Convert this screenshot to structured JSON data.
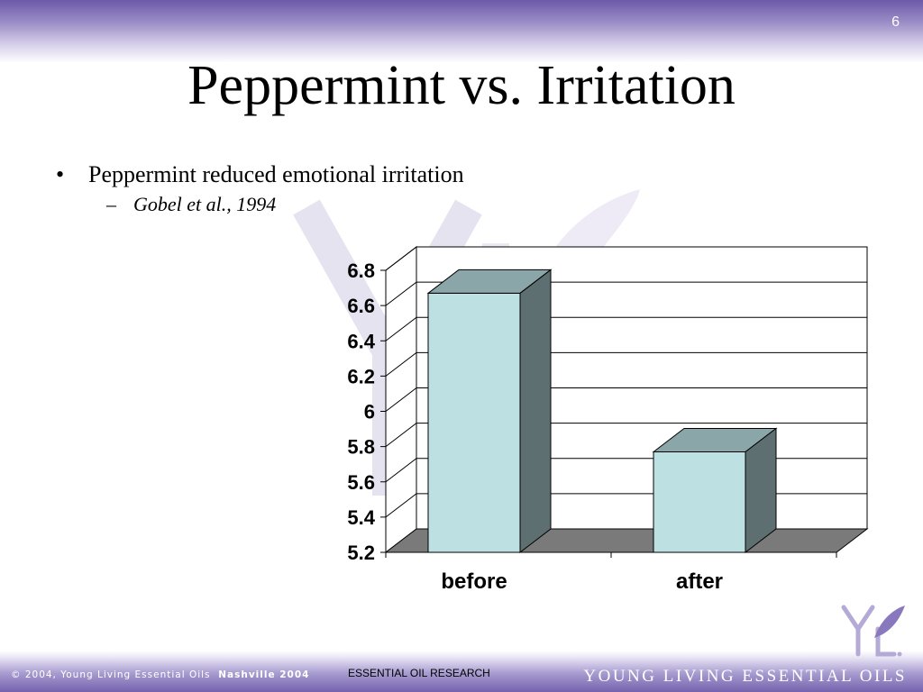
{
  "slide": {
    "number": "6",
    "title": "Peppermint vs. Irritation"
  },
  "bullets": [
    {
      "text": "Peppermint reduced emotional irritation",
      "sub": "Gobel et al., 1994"
    }
  ],
  "footer": {
    "copyright": "© 2004, Young Living Essential Oils",
    "event": "Nashville 2004",
    "center": "ESSENTIAL OIL RESEARCH",
    "brand": "YOUNG LIVING ESSENTIAL OILS",
    "logo_text": "YL"
  },
  "colors": {
    "bar_front": "#bde0e3",
    "bar_top": "#8aa6a8",
    "bar_side": "#5d6f70",
    "floor": "#7a7a7a",
    "accent_purple": "#7462ad"
  },
  "chart_data": {
    "type": "bar",
    "style": "3d",
    "categories": [
      "before",
      "after"
    ],
    "values": [
      6.67,
      5.77
    ],
    "ylim": [
      5.2,
      6.8
    ],
    "yticks": [
      "6.8",
      "6.6",
      "6.4",
      "6.2",
      "6",
      "5.8",
      "5.6",
      "5.4",
      "5.2"
    ],
    "grid": true,
    "legend": false,
    "title": "",
    "xlabel": "",
    "ylabel": ""
  }
}
